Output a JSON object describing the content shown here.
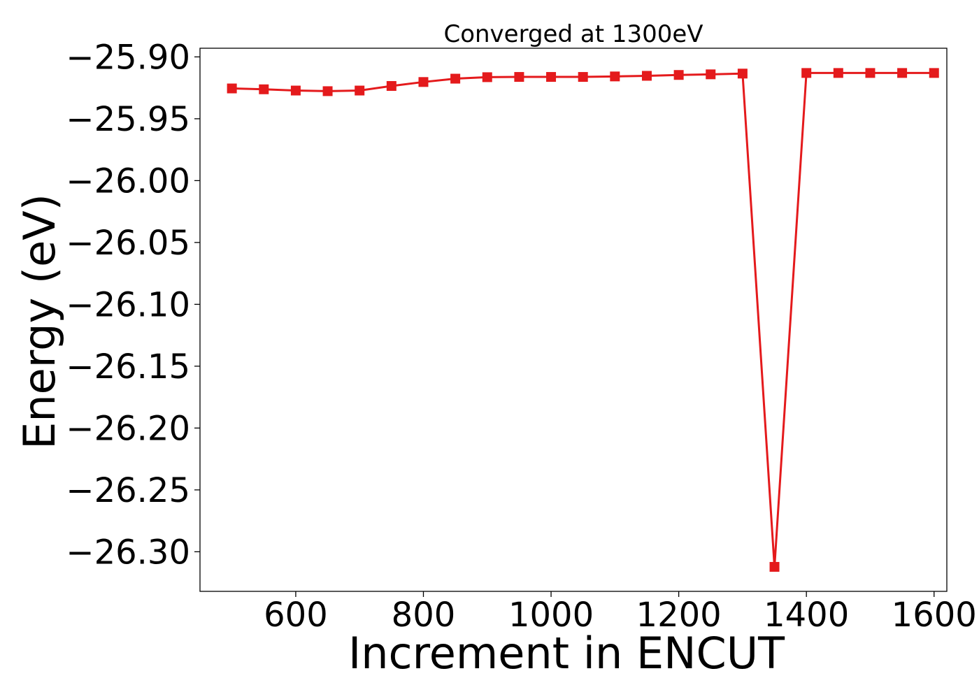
{
  "chart_data": {
    "type": "line",
    "title": "Converged at 1300eV",
    "xlabel": "Increment in ENCUT",
    "ylabel": "Energy (eV)",
    "xlim": [
      450,
      1620
    ],
    "ylim": [
      -26.332,
      -25.893
    ],
    "xticks": [
      600,
      800,
      1000,
      1200,
      1400,
      1600
    ],
    "xtick_labels": [
      "600",
      "800",
      "1000",
      "1200",
      "1400",
      "1600"
    ],
    "yticks": [
      -25.9,
      -25.95,
      -26.0,
      -26.05,
      -26.1,
      -26.15,
      -26.2,
      -26.25,
      -26.3
    ],
    "ytick_labels": [
      "−25.90",
      "−25.95",
      "−26.00",
      "−26.05",
      "−26.10",
      "−26.15",
      "−26.20",
      "−26.25",
      "−26.30"
    ],
    "grid": false,
    "legend": false,
    "series": [
      {
        "color": "#e41a1c",
        "marker": "square",
        "x": [
          500,
          550,
          600,
          650,
          700,
          750,
          800,
          850,
          900,
          950,
          1000,
          1050,
          1100,
          1150,
          1200,
          1250,
          1300,
          1350,
          1400,
          1450,
          1500,
          1550,
          1600
        ],
        "y": [
          -25.9255,
          -25.9262,
          -25.9272,
          -25.9277,
          -25.9272,
          -25.9235,
          -25.9203,
          -25.9176,
          -25.9164,
          -25.9162,
          -25.9162,
          -25.9162,
          -25.9158,
          -25.9153,
          -25.9146,
          -25.9141,
          -25.9135,
          -26.3122,
          -25.913,
          -25.913,
          -25.913,
          -25.913,
          -25.913
        ]
      }
    ]
  }
}
